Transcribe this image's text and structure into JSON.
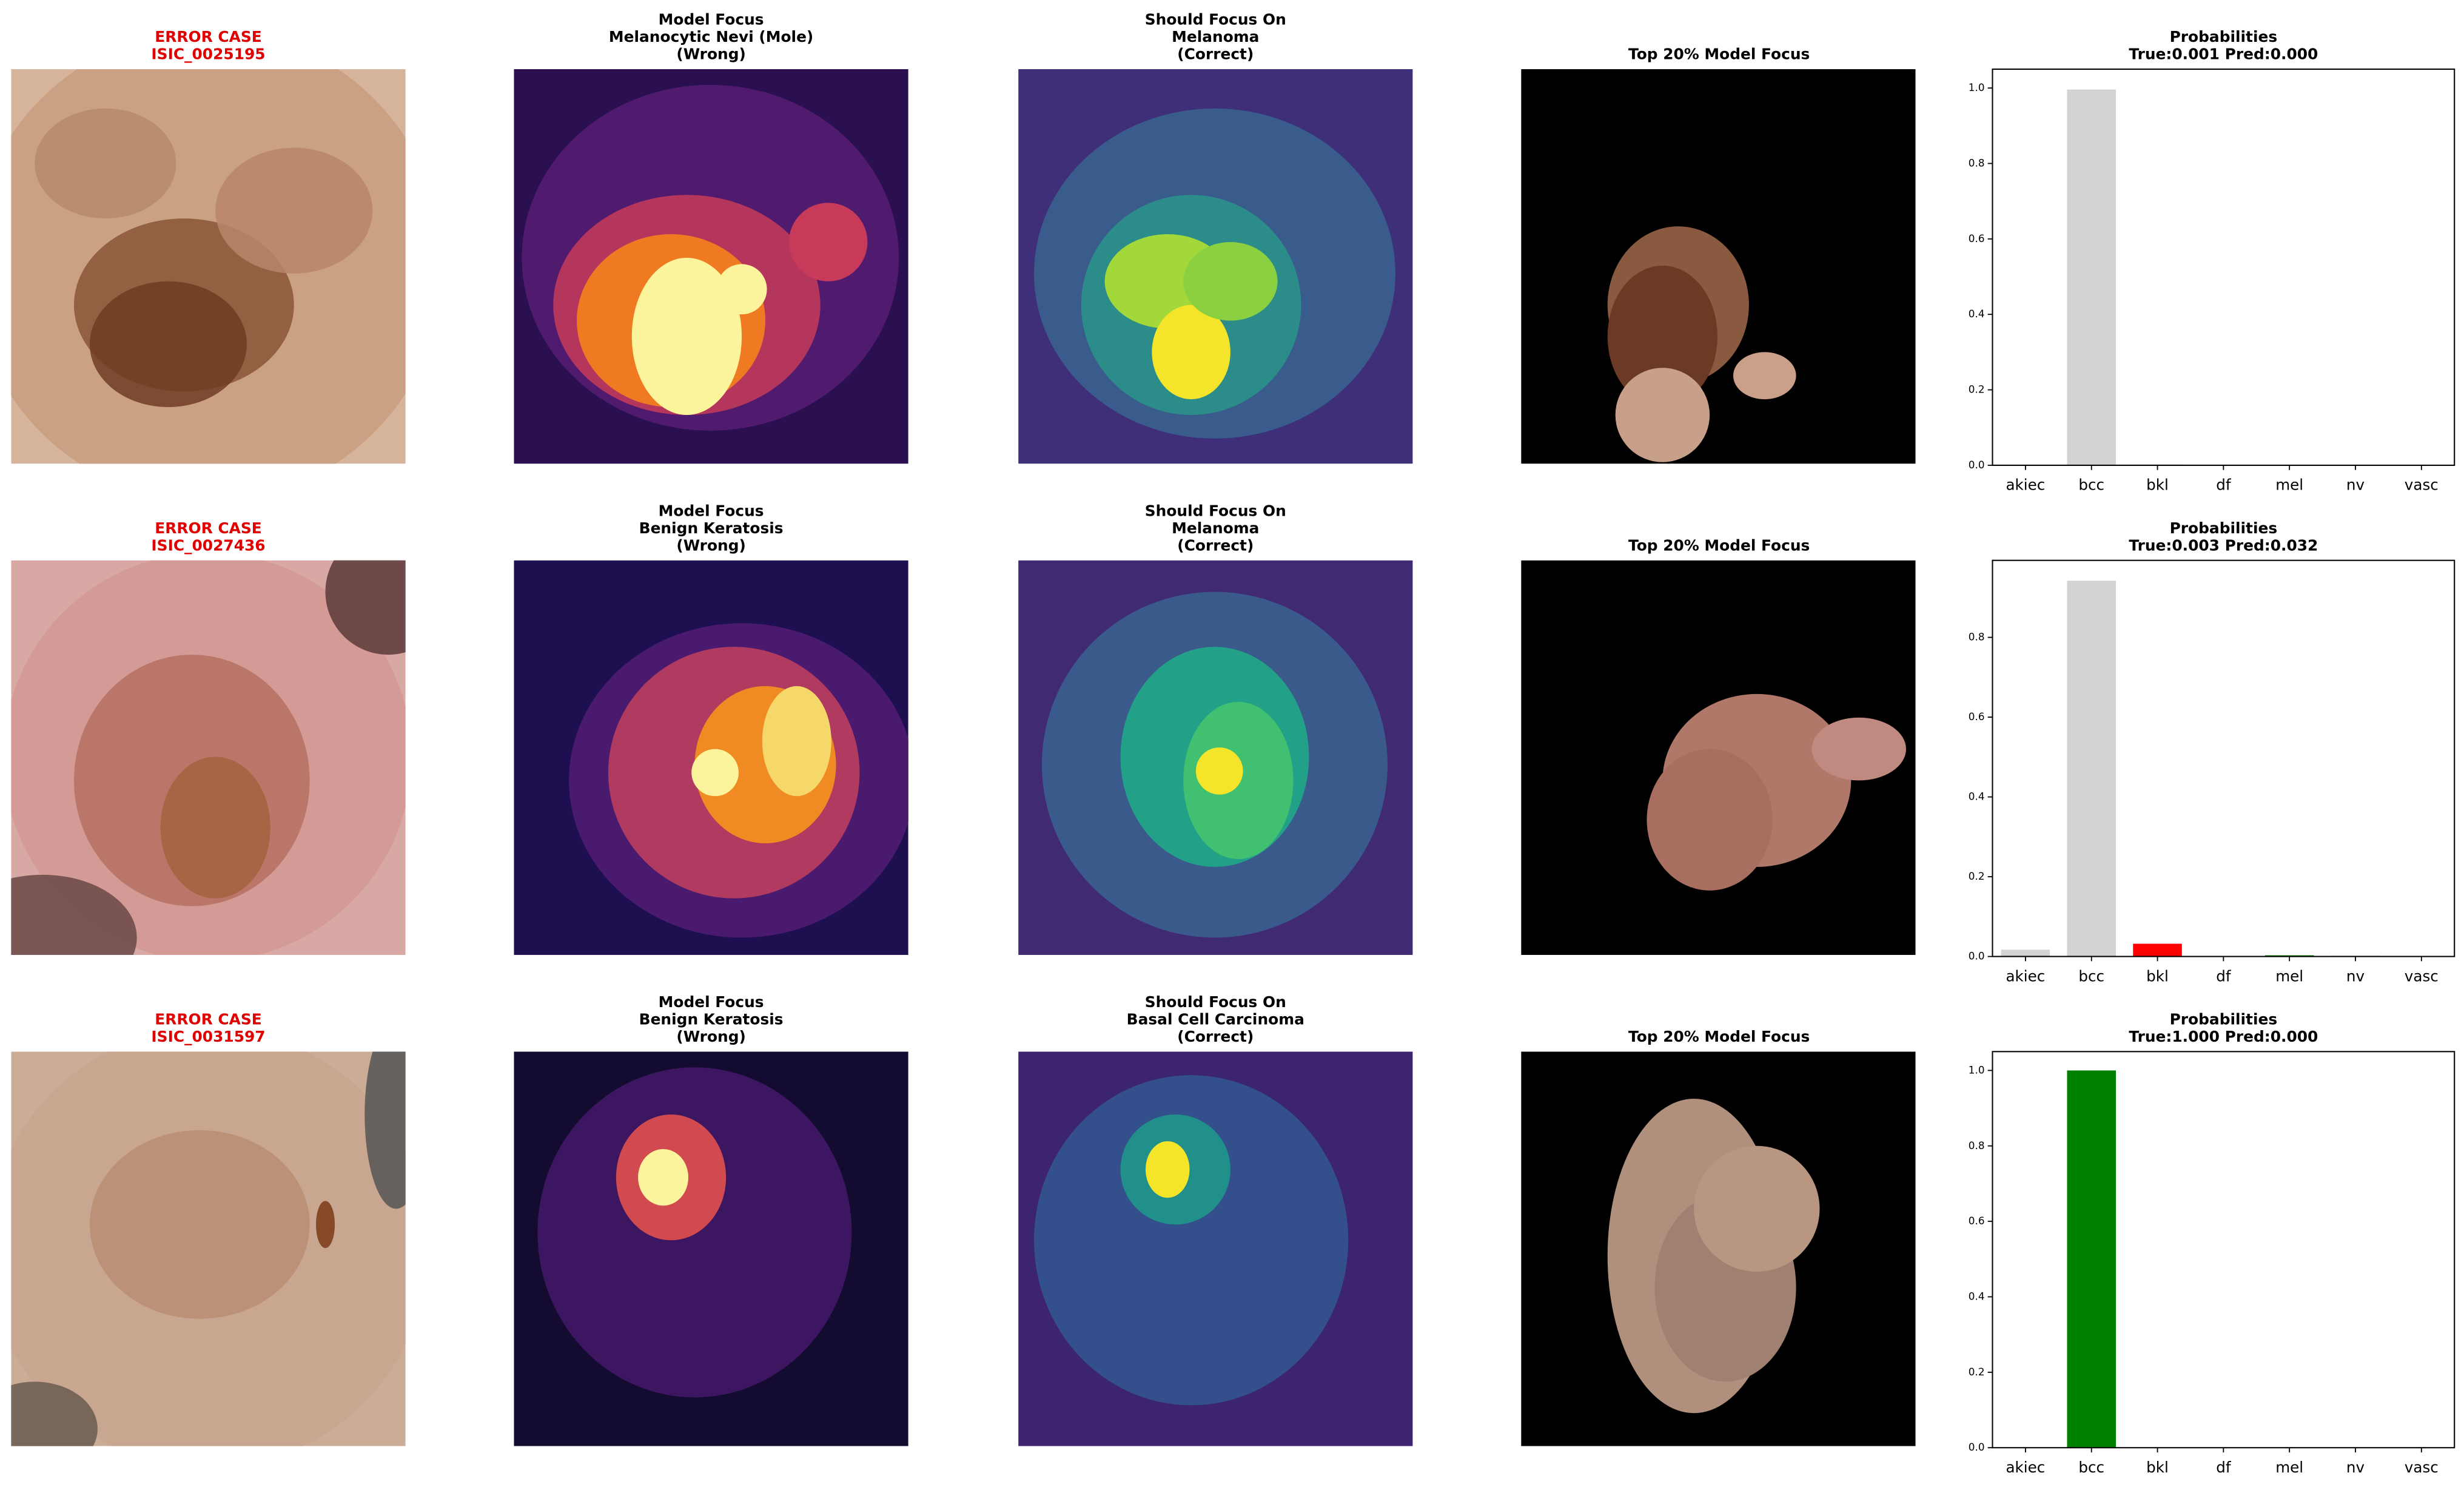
{
  "rows": [
    {
      "error_label": "ERROR CASE",
      "image_id": "ISIC_0025195",
      "model_focus": [
        "Model Focus",
        "Melanocytic Nevi (Mole)",
        "(Wrong)"
      ],
      "should_focus": [
        "Should Focus On",
        "Melanoma",
        "(Correct)"
      ],
      "top_focus": "Top 20% Model Focus"
    },
    {
      "error_label": "ERROR CASE",
      "image_id": "ISIC_0027436",
      "model_focus": [
        "Model Focus",
        "Benign Keratosis",
        "(Wrong)"
      ],
      "should_focus": [
        "Should Focus On",
        "Melanoma",
        "(Correct)"
      ],
      "top_focus": "Top 20% Model Focus"
    },
    {
      "error_label": "ERROR CASE",
      "image_id": "ISIC_0031597",
      "model_focus": [
        "Model Focus",
        "Benign Keratosis",
        "(Wrong)"
      ],
      "should_focus": [
        "Should Focus On",
        "Basal Cell Carcinoma",
        "(Correct)"
      ],
      "top_focus": "Top 20% Model Focus"
    }
  ],
  "chart_data": [
    {
      "type": "bar",
      "title": "Probabilities",
      "subtitle": "True:0.001 Pred:0.000",
      "categories": [
        "akiec",
        "bcc",
        "bkl",
        "df",
        "mel",
        "nv",
        "vasc"
      ],
      "values": [
        0.0,
        0.996,
        0.002,
        0.0,
        0.001,
        0.0,
        0.0
      ],
      "colors": [
        "#d3d3d3",
        "#d3d3d3",
        "#d3d3d3",
        "#d3d3d3",
        "#008000",
        "#ff0000",
        "#d3d3d3"
      ],
      "ylim": [
        0,
        1.05
      ],
      "yticks": [
        {
          "value": 0,
          "label": "0.0"
        },
        0.2,
        0.4,
        0.6,
        0.8,
        {
          "value": 1,
          "label": "1.0"
        }
      ]
    },
    {
      "type": "bar",
      "title": "Probabilities",
      "subtitle": "True:0.003 Pred:0.032",
      "categories": [
        "akiec",
        "bcc",
        "bkl",
        "df",
        "mel",
        "nv",
        "vasc"
      ],
      "values": [
        0.017,
        0.942,
        0.032,
        0.001,
        0.003,
        0.002,
        0.001
      ],
      "colors": [
        "#d3d3d3",
        "#d3d3d3",
        "#ff0000",
        "#d3d3d3",
        "#008000",
        "#d3d3d3",
        "#d3d3d3"
      ],
      "ylim": [
        0,
        0.993
      ],
      "yticks": [
        {
          "value": 0,
          "label": "0.0"
        },
        0.2,
        0.4,
        0.6,
        0.8
      ]
    },
    {
      "type": "bar",
      "title": "Probabilities",
      "subtitle": "True:1.000 Pred:0.000",
      "categories": [
        "akiec",
        "bcc",
        "bkl",
        "df",
        "mel",
        "nv",
        "vasc"
      ],
      "values": [
        0.0,
        1.0,
        0.0,
        0.0,
        0.0,
        0.0,
        0.0
      ],
      "colors": [
        "#d3d3d3",
        "#008000",
        "#ff0000",
        "#d3d3d3",
        "#d3d3d3",
        "#d3d3d3",
        "#d3d3d3"
      ],
      "ylim": [
        0,
        1.05
      ],
      "yticks": [
        {
          "value": 0,
          "label": "0.0"
        },
        0.2,
        0.4,
        0.6,
        0.8,
        {
          "value": 1,
          "label": "1.0"
        }
      ]
    }
  ]
}
